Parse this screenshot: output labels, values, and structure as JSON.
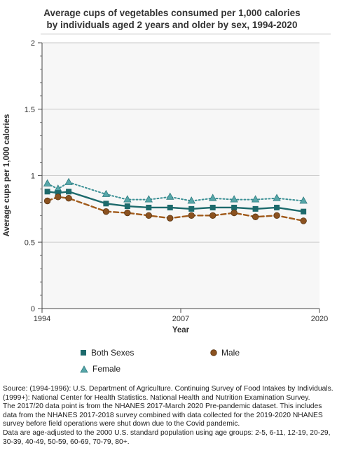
{
  "title_line1": "Average cups of vegetables consumed per 1,000 calories",
  "title_line2": "by individuals aged 2 years and older by sex, 1994-2020",
  "chart_data": {
    "type": "line",
    "title": "Average cups of vegetables consumed per 1,000 calories by individuals aged 2 years and older by sex, 1994-2020",
    "xlabel": "Year",
    "ylabel": "Average cups per 1,000 calories",
    "xlim": [
      1994,
      2020
    ],
    "ylim": [
      0,
      2
    ],
    "x_ticks": [
      "1994",
      "2007",
      "2020"
    ],
    "y_ticks": [
      "0",
      "0.5",
      "1",
      "1.5",
      "2"
    ],
    "x": [
      1994.5,
      1995.5,
      1996.5,
      2000,
      2002,
      2004,
      2006,
      2008,
      2010,
      2012,
      2014,
      2016,
      2018.5
    ],
    "series": [
      {
        "name": "Female",
        "marker": "triangle",
        "line": "dotted",
        "color": "#3a8f94",
        "fill": "#57a7a9",
        "values": [
          0.94,
          0.9,
          0.95,
          0.86,
          0.82,
          0.82,
          0.84,
          0.81,
          0.83,
          0.82,
          0.82,
          0.83,
          0.81
        ]
      },
      {
        "name": "Both Sexes",
        "marker": "square",
        "line": "solid",
        "color": "#1d6a6c",
        "fill": "#1d6a6c",
        "values": [
          0.88,
          0.87,
          0.88,
          0.79,
          0.77,
          0.76,
          0.76,
          0.75,
          0.76,
          0.76,
          0.75,
          0.76,
          0.73
        ]
      },
      {
        "name": "Male",
        "marker": "circle",
        "line": "dashed",
        "color": "#a05a1a",
        "fill": "#8b5220",
        "values": [
          0.81,
          0.84,
          0.83,
          0.73,
          0.72,
          0.7,
          0.68,
          0.7,
          0.7,
          0.72,
          0.69,
          0.7,
          0.66
        ]
      }
    ],
    "grid": true,
    "legend_position": "bottom"
  },
  "legend": {
    "both_sexes": "Both Sexes",
    "male": "Male",
    "female": "Female"
  },
  "source_lines": [
    "Source: (1994-1996): U.S. Department of Agriculture. Continuing Survey of Food Intakes by Individuals.",
    "(1999+): National Center for Health Statistics. National Health and Nutrition Examination Survey.",
    "The 2017/20 data point is from the NHANES 2017-March 2020 Pre-pandemic dataset. This includes",
    "data from the NHANES 2017-2018 survey combined with data collected for the 2019-2020 NHANES",
    "survey before field operations were shut down due to the Covid pandemic.",
    "Data are age-adjusted to the 2000 U.S. standard population using age groups: 2-5, 6-11, 12-19, 20-29,",
    "30-39, 40-49, 50-59, 60-69, 70-79, 80+."
  ]
}
